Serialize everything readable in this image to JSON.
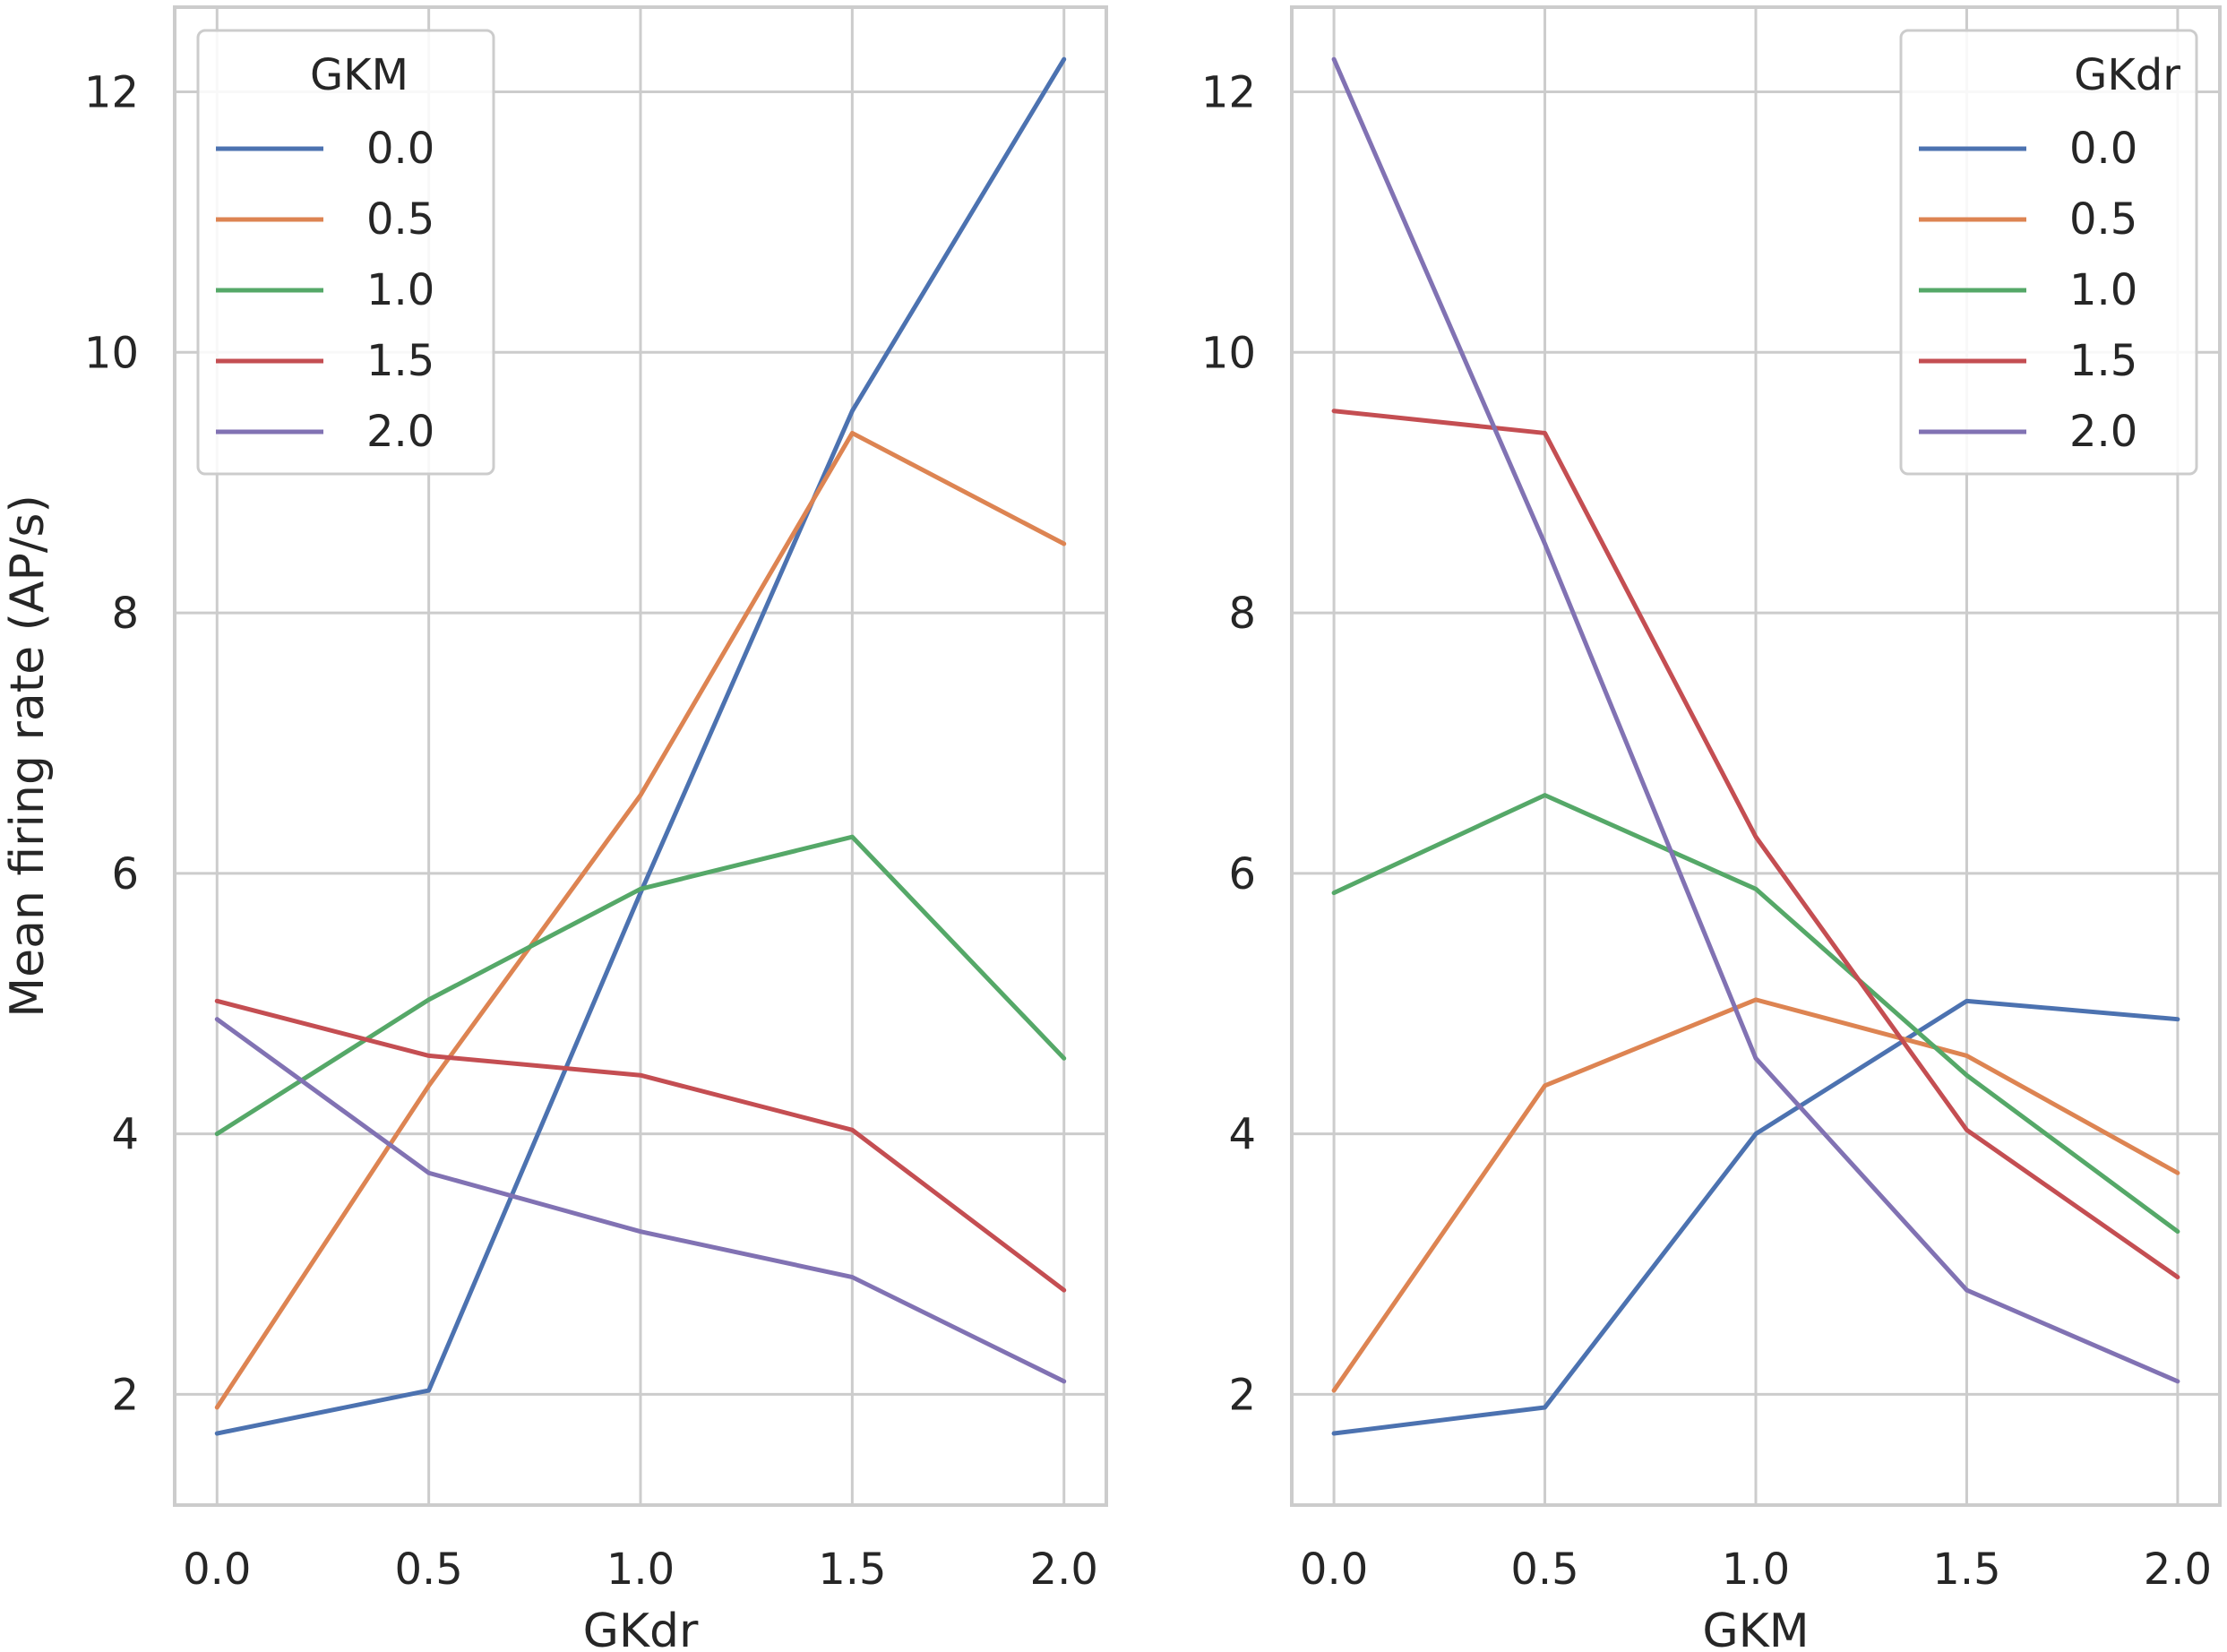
{
  "ylabel": "Mean firing rate (AP/s)",
  "colors": [
    "#4c72b0",
    "#dd8452",
    "#55a868",
    "#c44e52",
    "#8172b3"
  ],
  "chart_data": [
    {
      "type": "line",
      "xlabel": "GKdr",
      "ylabel": "Mean firing rate (AP/s)",
      "x": [
        0.0,
        0.5,
        1.0,
        1.5,
        2.0
      ],
      "x_ticks": [
        "0.0",
        "0.5",
        "1.0",
        "1.5",
        "2.0"
      ],
      "y_ticks": [
        "2",
        "4",
        "6",
        "8",
        "10",
        "12"
      ],
      "ylim": [
        1.15,
        12.65
      ],
      "xlim": [
        -0.1,
        2.1
      ],
      "grid": true,
      "legend": {
        "title": "GKM",
        "position": "top-left"
      },
      "series": [
        {
          "name": "0.0",
          "values": [
            1.7,
            2.03,
            5.85,
            9.55,
            12.25
          ]
        },
        {
          "name": "0.5",
          "values": [
            1.9,
            4.37,
            6.6,
            9.38,
            8.53
          ]
        },
        {
          "name": "1.0",
          "values": [
            4.0,
            5.03,
            5.88,
            6.28,
            4.58
          ]
        },
        {
          "name": "1.5",
          "values": [
            5.02,
            4.6,
            4.45,
            4.03,
            2.8
          ]
        },
        {
          "name": "2.0",
          "values": [
            4.88,
            3.7,
            3.25,
            2.9,
            2.1
          ]
        }
      ]
    },
    {
      "type": "line",
      "xlabel": "GKM",
      "ylabel": "",
      "x": [
        0.0,
        0.5,
        1.0,
        1.5,
        2.0
      ],
      "x_ticks": [
        "0.0",
        "0.5",
        "1.0",
        "1.5",
        "2.0"
      ],
      "y_ticks": [
        "2",
        "4",
        "6",
        "8",
        "10",
        "12"
      ],
      "ylim": [
        1.15,
        12.65
      ],
      "xlim": [
        -0.1,
        2.1
      ],
      "grid": true,
      "legend": {
        "title": "GKdr",
        "position": "top-right"
      },
      "series": [
        {
          "name": "0.0",
          "values": [
            1.7,
            1.9,
            4.0,
            5.02,
            4.88
          ]
        },
        {
          "name": "0.5",
          "values": [
            2.03,
            4.37,
            5.03,
            4.6,
            3.7
          ]
        },
        {
          "name": "1.0",
          "values": [
            5.85,
            6.6,
            5.88,
            4.45,
            3.25
          ]
        },
        {
          "name": "1.5",
          "values": [
            9.55,
            9.38,
            6.28,
            4.03,
            2.9
          ]
        },
        {
          "name": "2.0",
          "values": [
            12.25,
            8.53,
            4.58,
            2.8,
            2.1
          ]
        }
      ]
    }
  ]
}
